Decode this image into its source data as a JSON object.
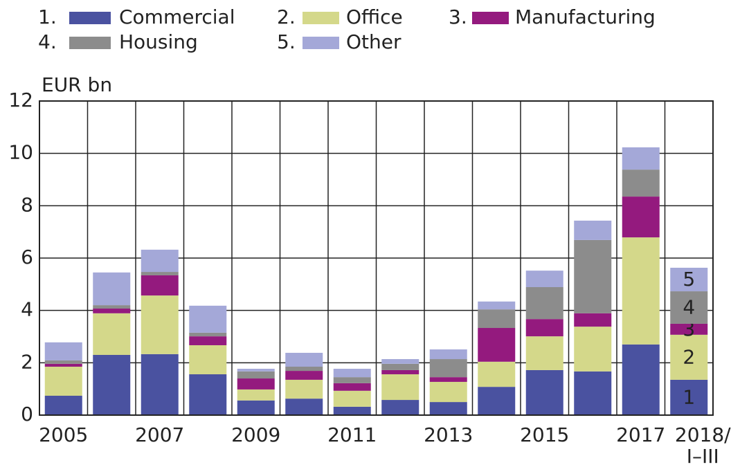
{
  "chart_data": {
    "type": "stacked_bar",
    "y_axis_label": "EUR bn",
    "categories": [
      "2005",
      null,
      "2007",
      null,
      "2009",
      null,
      "2011",
      null,
      "2013",
      null,
      "2015",
      null,
      "2017",
      "2018/\nI–III"
    ],
    "series": [
      {
        "name": "Commercial",
        "legend_number": "1.",
        "bar_label": "1",
        "bar_label_color": "#ffffff",
        "color": "#4a52a0",
        "values": [
          0.74,
          2.3,
          2.33,
          1.56,
          0.56,
          0.63,
          0.32,
          0.58,
          0.5,
          1.08,
          1.72,
          1.67,
          2.7,
          1.35
        ]
      },
      {
        "name": "Office",
        "legend_number": "2.",
        "bar_label": "2",
        "bar_label_color": "#222222",
        "color": "#d4d88a",
        "values": [
          1.11,
          1.59,
          2.24,
          1.11,
          0.42,
          0.72,
          0.61,
          0.98,
          0.77,
          0.96,
          1.29,
          1.71,
          4.09,
          1.72
        ]
      },
      {
        "name": "Manufacturing",
        "legend_number": "3.",
        "bar_label": "3",
        "bar_label_color": "#ffffff",
        "color": "#941a7e",
        "values": [
          0.11,
          0.18,
          0.77,
          0.34,
          0.42,
          0.34,
          0.29,
          0.16,
          0.18,
          1.29,
          0.66,
          0.51,
          1.56,
          0.42
        ]
      },
      {
        "name": "Housing",
        "legend_number": "4.",
        "bar_label": "4",
        "bar_label_color": "#222222",
        "color": "#8c8c8c",
        "values": [
          0.13,
          0.13,
          0.13,
          0.14,
          0.27,
          0.16,
          0.23,
          0.24,
          0.69,
          0.71,
          1.22,
          2.8,
          1.03,
          1.24
        ]
      },
      {
        "name": "Other",
        "legend_number": "5.",
        "bar_label": "5",
        "bar_label_color": "#222222",
        "color": "#a4a8d8",
        "values": [
          0.69,
          1.25,
          0.85,
          1.03,
          0.1,
          0.53,
          0.32,
          0.18,
          0.37,
          0.3,
          0.63,
          0.74,
          0.85,
          0.9
        ]
      }
    ],
    "ylim": [
      0,
      12
    ],
    "yticks": [
      0,
      2,
      4,
      6,
      8,
      10,
      12
    ],
    "grid": true
  }
}
